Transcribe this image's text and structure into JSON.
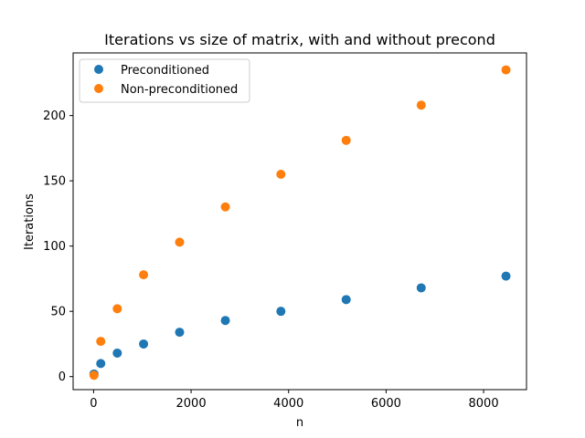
{
  "chart_data": {
    "type": "scatter",
    "title": "Iterations vs size of matrix, with and without precond",
    "xlabel": "n",
    "ylabel": "Iterations",
    "xlim": [
      -420,
      8880
    ],
    "ylim": [
      -10,
      248
    ],
    "xticks": [
      0,
      2000,
      4000,
      6000,
      8000
    ],
    "yticks": [
      0,
      50,
      100,
      150,
      200
    ],
    "grid": false,
    "legend_position": "top-left",
    "series": [
      {
        "name": "Preconditioned",
        "color": "#1f77b4",
        "x": [
          8,
          147,
          486,
          1025,
          1764,
          2703,
          3842,
          5181,
          6720,
          8459
        ],
        "y": [
          2,
          10,
          18,
          25,
          34,
          43,
          50,
          59,
          68,
          77
        ]
      },
      {
        "name": "Non-preconditioned",
        "color": "#ff7f0e",
        "x": [
          8,
          147,
          486,
          1025,
          1764,
          2703,
          3842,
          5181,
          6720,
          8459
        ],
        "y": [
          1,
          27,
          52,
          78,
          103,
          130,
          155,
          181,
          208,
          235
        ]
      }
    ]
  }
}
